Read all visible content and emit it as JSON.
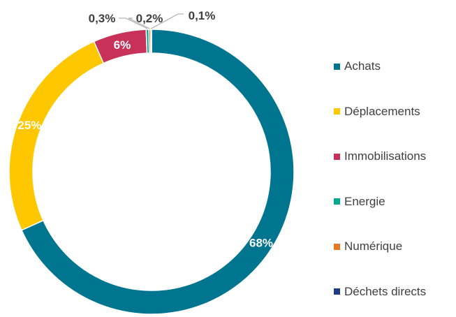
{
  "chart_data": {
    "type": "pie",
    "variant": "donut",
    "categories": [
      "Achats",
      "Déplacements",
      "Immobilisations",
      "Energie",
      "Numérique",
      "Déchets directs"
    ],
    "values": [
      68,
      25,
      6,
      0.3,
      0.2,
      0.1
    ],
    "labels": [
      "68%",
      "25%",
      "6%",
      "0,3%",
      "0,2%",
      "0,1%"
    ],
    "colors": [
      "#00758F",
      "#FFC700",
      "#C8325A",
      "#00A98F",
      "#E87722",
      "#1F3C88"
    ],
    "legend": {
      "position": "right"
    }
  }
}
